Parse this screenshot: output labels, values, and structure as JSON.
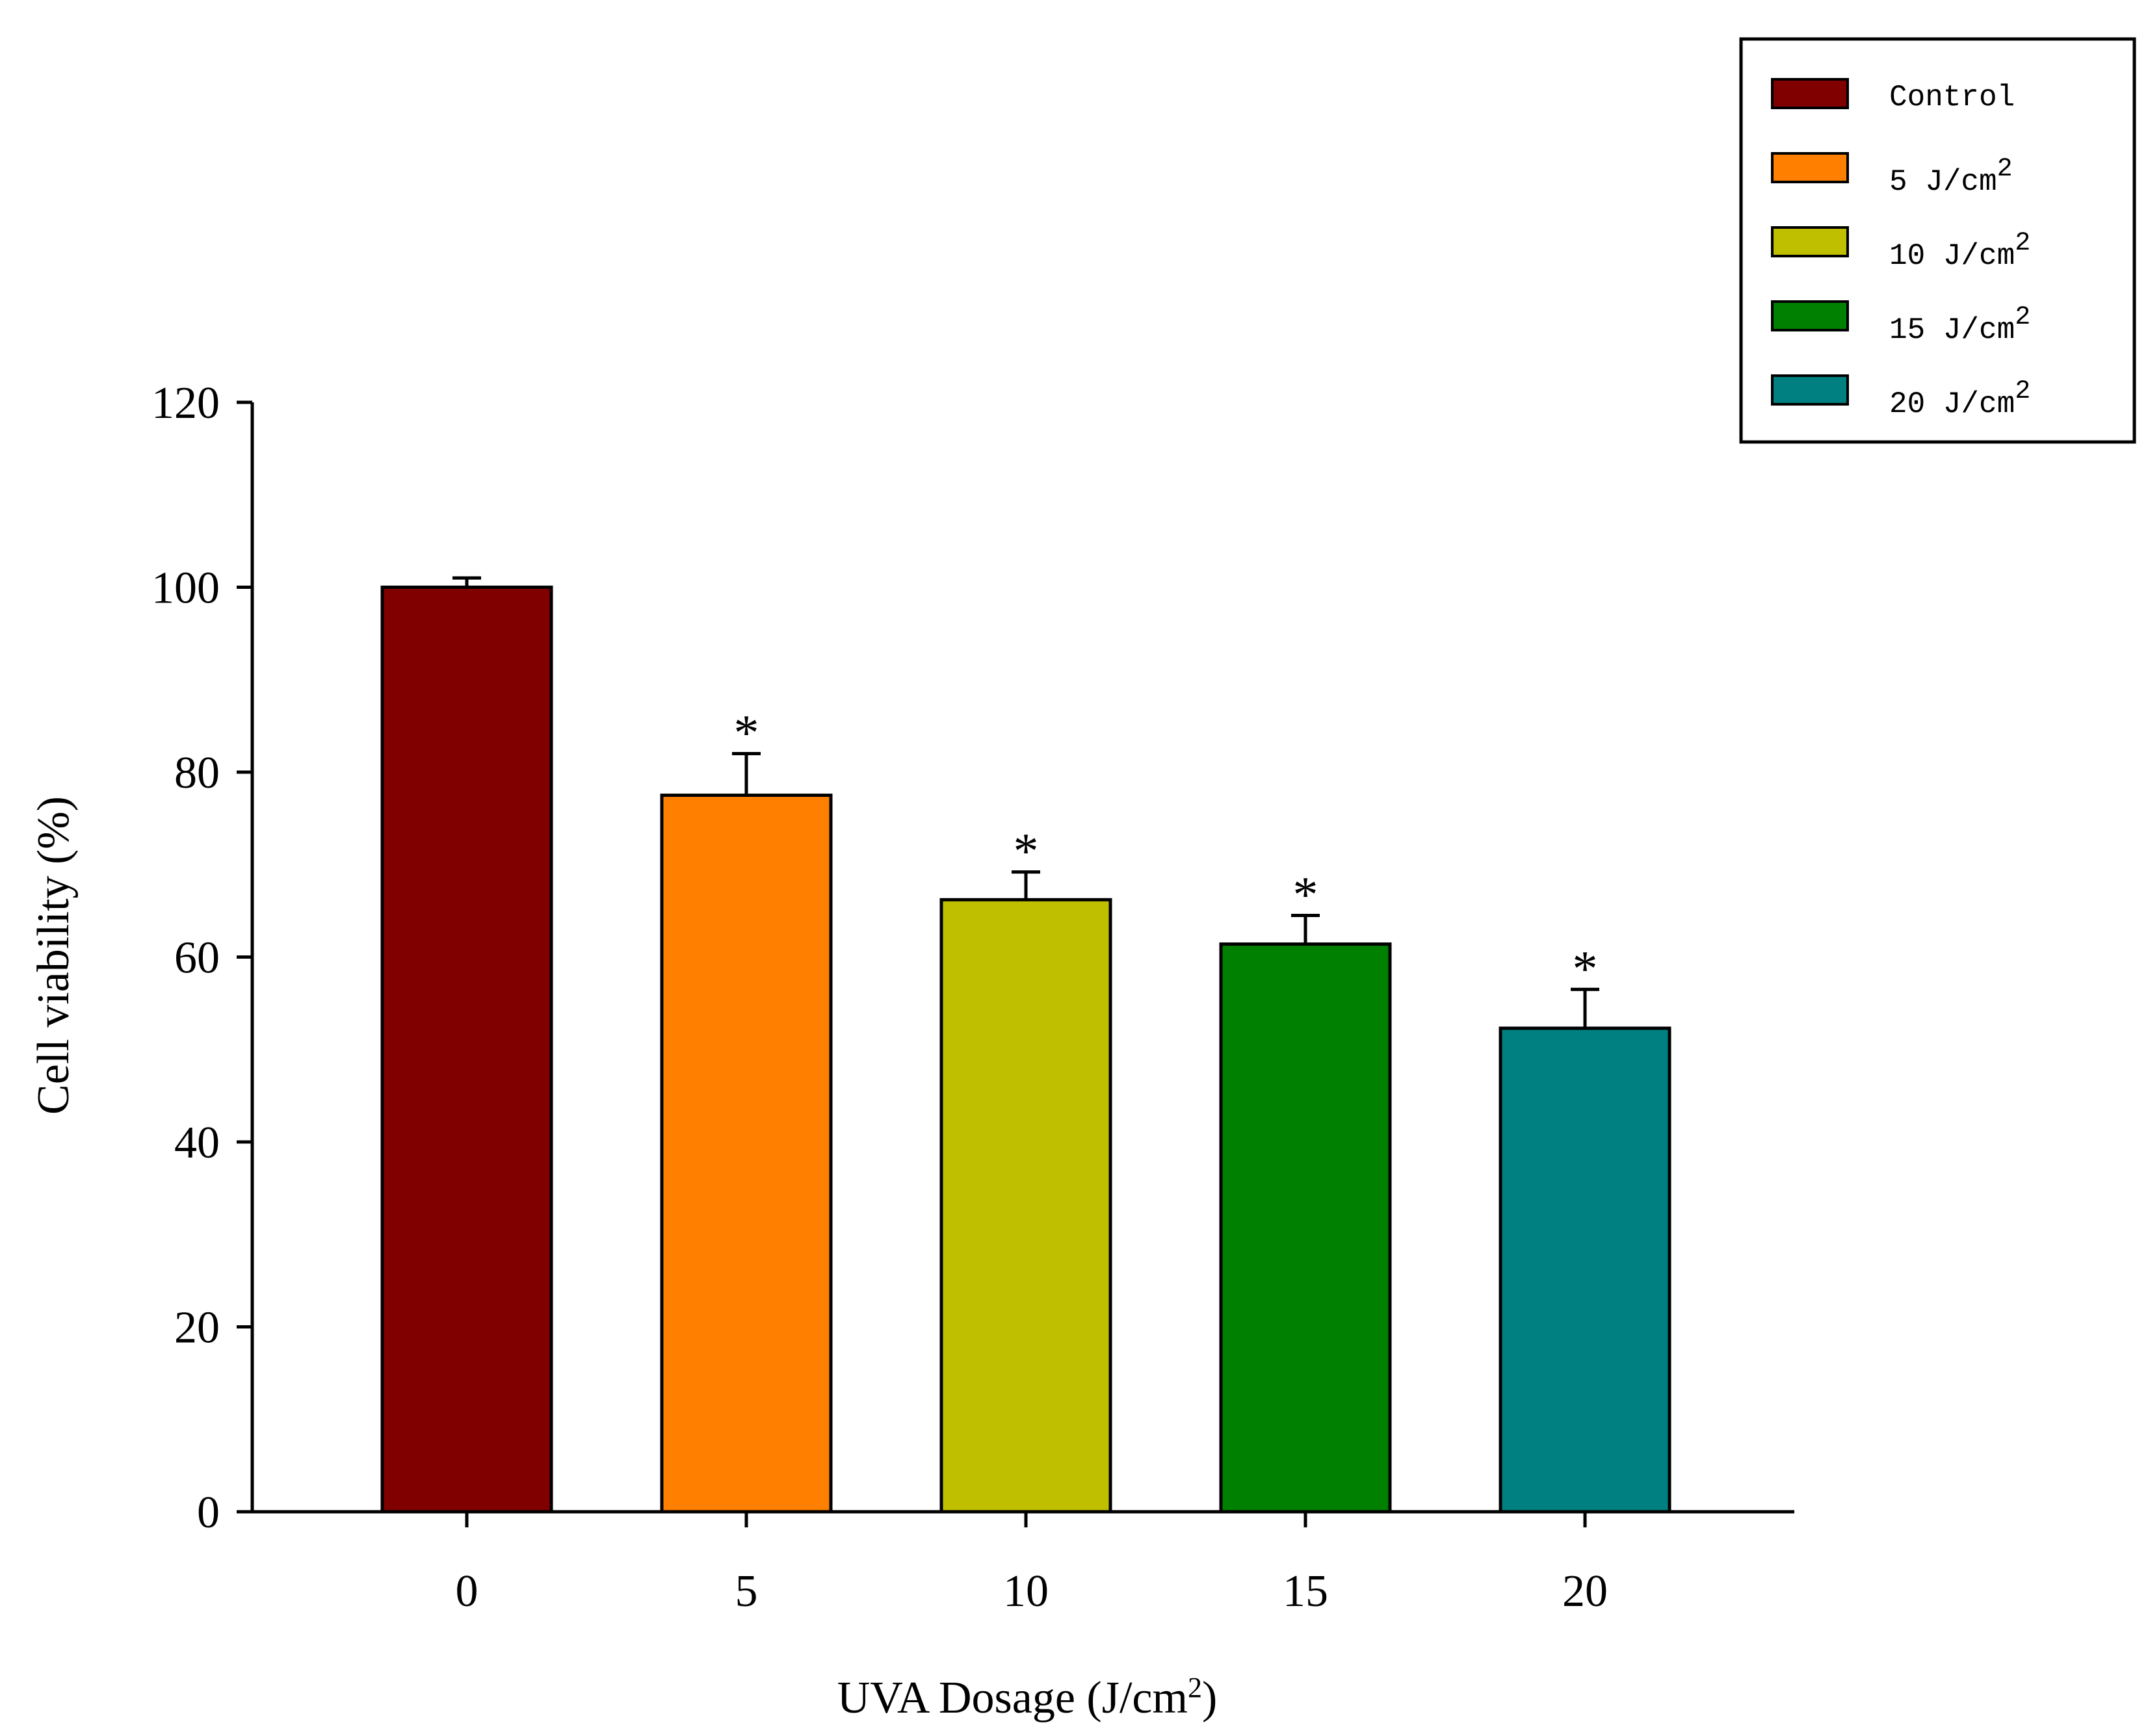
{
  "chart_data": {
    "type": "bar",
    "title": "",
    "xlabel": "UVA Dosage (J/cm",
    "xlabel_sup": "2",
    "xlabel_tail": ")",
    "ylabel": "Cell viability (%)",
    "ylim": [
      0,
      120
    ],
    "yticks": [
      0,
      20,
      40,
      60,
      80,
      100,
      120
    ],
    "categories": [
      "0",
      "5",
      "10",
      "15",
      "20"
    ],
    "values": [
      100.0,
      77.5,
      66.2,
      61.4,
      52.3
    ],
    "errors": [
      1.0,
      4.5,
      3.0,
      3.1,
      4.2
    ],
    "significance": [
      "",
      "*",
      "*",
      "*",
      "*"
    ],
    "colors": [
      "#800000",
      "#ff7f00",
      "#bfbf00",
      "#008000",
      "#008080"
    ],
    "legend": {
      "placement": "top-right",
      "entries": [
        {
          "label": "Control",
          "sup": ""
        },
        {
          "label": "5 J/cm",
          "sup": "2"
        },
        {
          "label": "10 J/cm",
          "sup": "2"
        },
        {
          "label": "15 J/cm",
          "sup": "2"
        },
        {
          "label": "20 J/cm",
          "sup": "2"
        }
      ]
    }
  }
}
